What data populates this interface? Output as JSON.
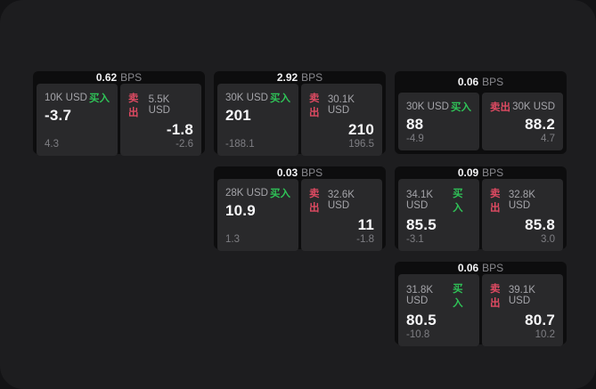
{
  "labels": {
    "bps": "BPS",
    "buy": "买入",
    "sell": "卖出"
  },
  "colors": {
    "buy_green": "#2fc257",
    "sell_red": "#de4a62",
    "panel_bg": "#1d1d1f",
    "card_bg": "#0d0d0e",
    "subcard_bg": "#29292b",
    "value_white": "#f7f7f9",
    "muted_gray": "#8a8a8f"
  },
  "cards": [
    {
      "bps": "0.62",
      "buy": {
        "amount": "10K USD",
        "value": "-3.7",
        "delta": "4.3"
      },
      "sell": {
        "amount": "5.5K USD",
        "value": "-1.8",
        "delta": "-2.6"
      }
    },
    {
      "bps": "2.92",
      "buy": {
        "amount": "30K USD",
        "value": "201",
        "delta": "-188.1"
      },
      "sell": {
        "amount": "30.1K USD",
        "value": "210",
        "delta": "196.5"
      }
    },
    {
      "bps": "0.06",
      "buy": {
        "amount": "30K USD",
        "value": "88",
        "delta": "-4.9"
      },
      "sell": {
        "amount": "30K USD",
        "value": "88.2",
        "delta": "4.7"
      }
    },
    {
      "bps": "0.03",
      "buy": {
        "amount": "28K USD",
        "value": "10.9",
        "delta": "1.3"
      },
      "sell": {
        "amount": "32.6K USD",
        "value": "11",
        "delta": "-1.8"
      }
    },
    {
      "bps": "0.09",
      "buy": {
        "amount": "34.1K USD",
        "value": "85.5",
        "delta": "-3.1"
      },
      "sell": {
        "amount": "32.8K USD",
        "value": "85.8",
        "delta": "3.0"
      }
    },
    {
      "bps": "0.06",
      "buy": {
        "amount": "31.8K USD",
        "value": "80.5",
        "delta": "-10.8"
      },
      "sell": {
        "amount": "39.1K USD",
        "value": "80.7",
        "delta": "10.2"
      }
    }
  ]
}
